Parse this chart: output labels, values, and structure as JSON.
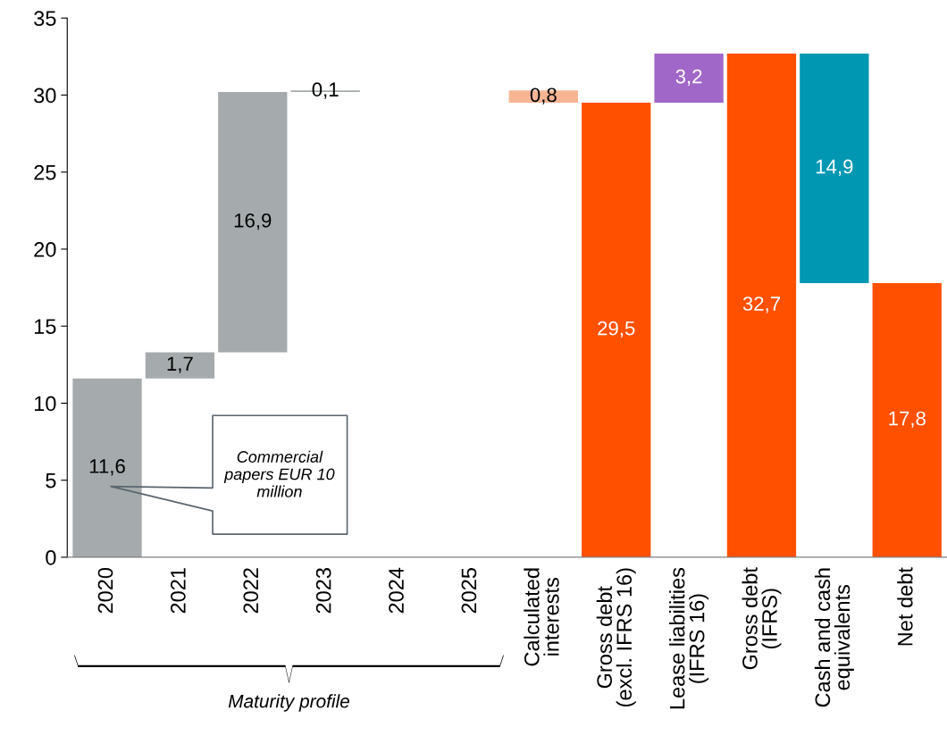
{
  "chart_data": {
    "type": "bar",
    "categories": [
      "2020",
      "2021",
      "2022",
      "2023",
      "2024",
      "2025",
      "Calculated\ninterests",
      "Gross debt\n(excl. IFRS 16)",
      "Lease liabilities\n(IFRS 16)",
      "Gross debt\n(IFRS)",
      "Cash and cash\nequivalents",
      "Net debt"
    ],
    "values": [
      11.6,
      1.7,
      16.9,
      0.1,
      null,
      null,
      0.8,
      29.5,
      3.2,
      32.7,
      14.9,
      17.8
    ],
    "base": [
      0,
      11.6,
      13.3,
      30.2,
      null,
      null,
      29.5,
      0,
      29.5,
      0,
      17.8,
      0
    ],
    "colors": [
      "#a5abac",
      "#a5abac",
      "#a5abac",
      "#a5abac",
      "#a5abac",
      "#a5abac",
      "#f8b593",
      "#ff5000",
      "#a066c8",
      "#ff5000",
      "#0097b2",
      "#ff5000"
    ],
    "value_labels": [
      "11,6",
      "1,7",
      "16,9",
      "0,1",
      null,
      null,
      "0,8",
      "29,5",
      "3,2",
      "32,7",
      "14,9",
      "17,8"
    ],
    "ylim": [
      0,
      35
    ],
    "yticks": [
      0,
      5,
      10,
      15,
      20,
      25,
      30,
      35
    ],
    "grid": false,
    "legend": false,
    "annotations": [
      "Commercial\npapers EUR 10\nmillion",
      "Maturity profile"
    ]
  }
}
